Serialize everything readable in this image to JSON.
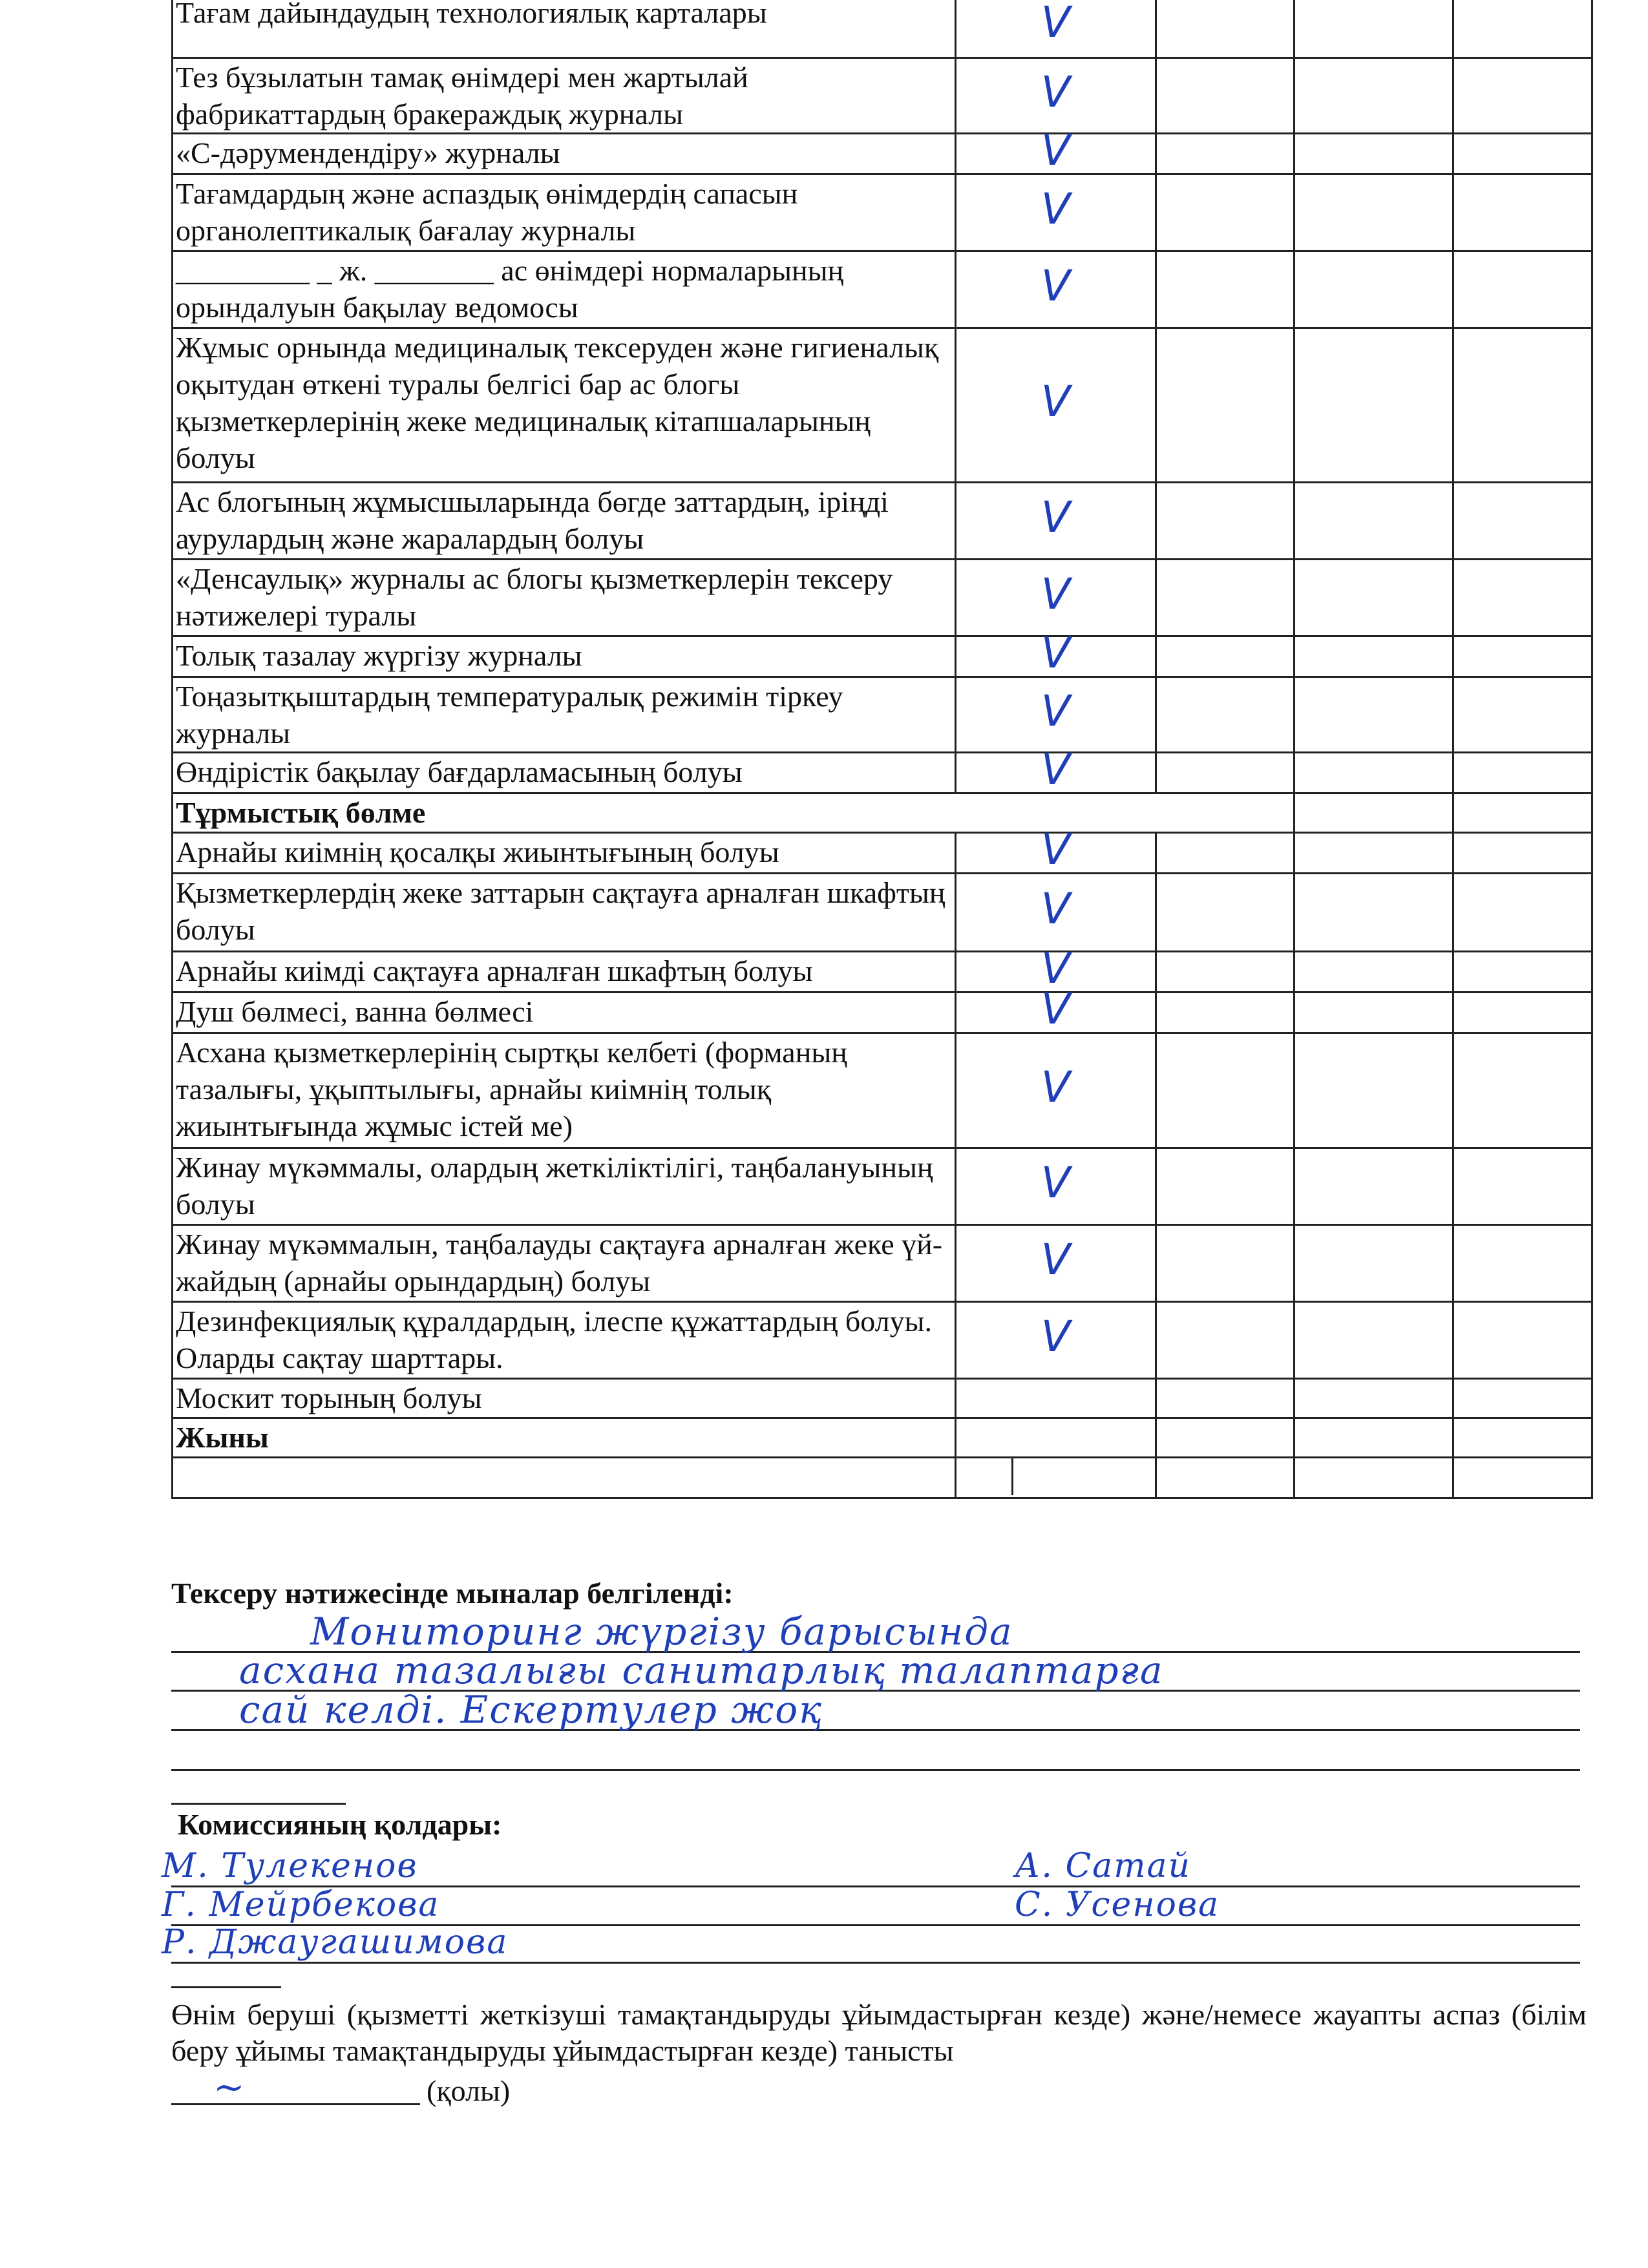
{
  "table": {
    "rows": [
      {
        "text": "Тағам дайындаудың технологиялық карталары",
        "check": "V"
      },
      {
        "text": "Тез бұзылатын тамақ өнімдері мен жартылай фабрикаттардың бракераждық журналы",
        "check": "V"
      },
      {
        "text": "«С-дәрумендендіру» журналы",
        "check": "V"
      },
      {
        "text": "Тағамдардың және аспаздық өнімдердің сапасын органолептикалық бағалау журналы",
        "check": "V"
      },
      {
        "text": "_________ _ ж. ________ ас өнімдері нормаларының орындалуын бақылау ведомосы",
        "check": "V"
      },
      {
        "text": "Жұмыс орнында медициналық тексеруден және гигиеналық оқытудан өткені туралы белгісі бар ас блогы қызметкерлерінің жеке медициналық кітапшаларының болуы",
        "check": "V"
      },
      {
        "text": "Ас блогының жұмысшыларында бөгде заттардың, іріңді аурулардың және жаралардың болуы",
        "check": "V"
      },
      {
        "text": "«Денсаулық» журналы ас блогы қызметкерлерін тексеру нәтижелері туралы",
        "check": "V"
      },
      {
        "text": "Толық тазалау жүргізу журналы",
        "check": "V"
      },
      {
        "text": "Тоңазытқыштардың температуралық режимін тіркеу журналы",
        "check": "V"
      },
      {
        "text": "Өндірістік бақылау бағдарламасының болуы",
        "check": "V"
      }
    ],
    "section_title": "Тұрмыстық бөлме",
    "section_rows": [
      {
        "text": "Арнайы киімнің қосалқы жиынтығының болуы",
        "check": "V"
      },
      {
        "text": "Қызметкерлердің жеке заттарын сақтауға арналған шкафтың болуы",
        "check": "V"
      },
      {
        "text": "Арнайы киімді сақтауға арналған шкафтың болуы",
        "check": "V"
      },
      {
        "text": "Душ бөлмесі, ванна бөлмесі",
        "check": "V"
      },
      {
        "text": "Асхана қызметкерлерінің сыртқы келбеті (форманың тазалығы, ұқыптылығы, арнайы киімнің толық жиынтығында жұмыс істей ме)",
        "check": "V"
      },
      {
        "text": "Жинау мүкәммалы, олардың жеткіліктілігі, таңбалануының болуы",
        "check": "V"
      },
      {
        "text": "Жинау мүкәммалын, таңбалауды сақтауға арналған жеке үй-жайдың (арнайы орындардың) болуы",
        "check": "V"
      },
      {
        "text": "Дезинфекциялық құралдардың, ілеспе құжаттардың болуы. Оларды сақтау шарттары.",
        "check": "V"
      },
      {
        "text": "Москит торының болуы",
        "check": ""
      }
    ],
    "total_label": "Жыны"
  },
  "findings": {
    "label": "Тексеру нәтижесінде мыналар белгіленді:",
    "handwritten": [
      "Мониторинг жүргізу барысында",
      "асхана тазалығы санитарлық талаптарға",
      "сай келді. Ескертулер жоқ"
    ]
  },
  "commission": {
    "label": "Комиссияның қолдары:",
    "signatures": [
      "М. Тулекенов",
      "Г. Мейрбекова",
      "Р. Джаугашимова",
      "А. Сатай",
      "С. Усенова"
    ]
  },
  "acknowledgement": {
    "text": "Өнім беруші (қызметті жеткізуші тамақтандыруды ұйымдастырған кезде) және/немесе жауапты аспаз (білім беру ұйымы тамақтандыруды ұйымдастырған кезде) танысты",
    "sign_label": "(қолы)"
  },
  "colors": {
    "ink": "#1f3fb8"
  }
}
